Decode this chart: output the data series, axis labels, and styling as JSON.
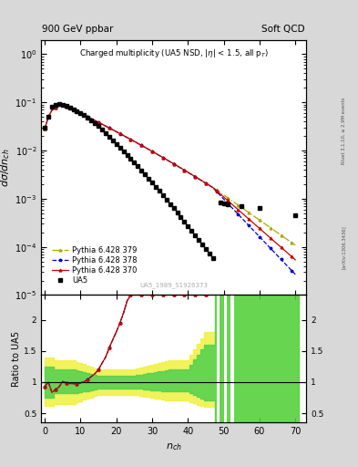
{
  "title_left": "900 GeV ppbar",
  "title_right": "Soft QCD",
  "plot_title": "Charged multiplicity (UA5 NSD, |\\eta| < 1.5, all p_{T})",
  "ylabel_main": "d\\sigma/dn_{ch}",
  "ylabel_ratio": "Ratio to UA5",
  "xlabel": "n_{ch}",
  "watermark": "UA5_1989_S1926373",
  "right_label_top": "Rivet 3.1.10, ≥ 2.9M events",
  "right_label_bottom": "[arXiv:1306.3436]",
  "color_370": "#cc0000",
  "color_378": "#0000cc",
  "color_379": "#aaaa00",
  "ylim_main": [
    1e-05,
    2.0
  ],
  "ylim_ratio": [
    0.35,
    2.4
  ],
  "xlim": [
    -1,
    73
  ]
}
